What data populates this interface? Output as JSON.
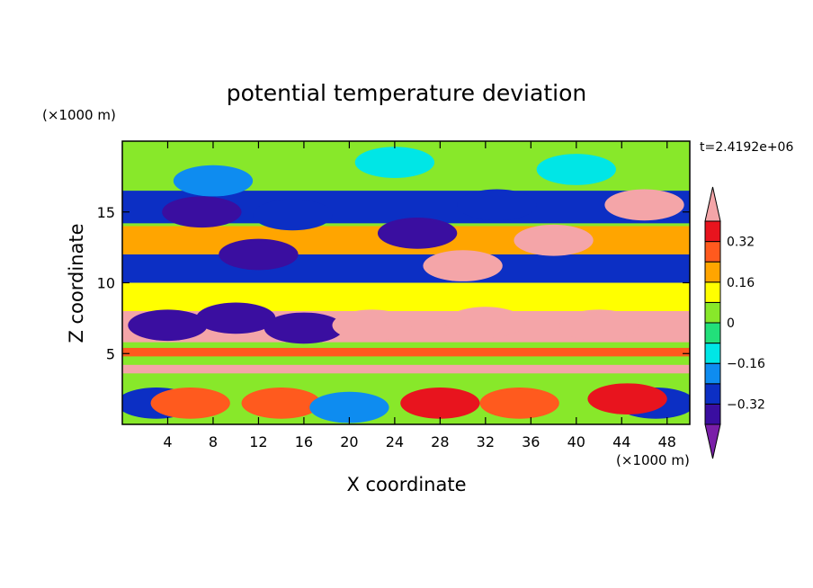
{
  "chart_data": {
    "type": "heatmap",
    "title": "potential temperature deviation",
    "xlabel": "X coordinate",
    "ylabel": "Z coordinate",
    "x_unit": "(×1000 m)",
    "y_unit": "(×1000 m)",
    "time_label": "t=2.4192e+06",
    "xlim": [
      0,
      50
    ],
    "ylim": [
      0,
      20
    ],
    "x_ticks": [
      4,
      8,
      12,
      16,
      20,
      24,
      28,
      32,
      36,
      40,
      44,
      48
    ],
    "y_ticks": [
      5,
      10,
      15
    ],
    "colorbar": {
      "levels": [
        -0.4,
        -0.32,
        -0.24,
        -0.16,
        -0.08,
        0,
        0.08,
        0.16,
        0.24,
        0.32,
        0.4
      ],
      "labels": [
        "0.32",
        "0.16",
        "0",
        "−0.16",
        "−0.32"
      ],
      "label_values": [
        0.32,
        0.16,
        0,
        -0.16,
        -0.32
      ],
      "colors": [
        "#7a1fa8",
        "#3a0ea0",
        "#0c2fc4",
        "#0e8cf0",
        "#00e6e6",
        "#22e07a",
        "#88e82a",
        "#ffff00",
        "#ffa500",
        "#ff5a1e",
        "#e8141e",
        "#f4a5a8"
      ]
    },
    "bands": [
      {
        "z": [
          18.0,
          20.0
        ],
        "value": 0.02
      },
      {
        "z": [
          14.2,
          16.5
        ],
        "value": -0.28
      },
      {
        "z": [
          12.0,
          14.0
        ],
        "value": 0.2
      },
      {
        "z": [
          10.0,
          12.0
        ],
        "value": -0.3
      },
      {
        "z": [
          8.0,
          10.0
        ],
        "value": 0.1
      },
      {
        "z": [
          5.8,
          8.0
        ],
        "value": 0.42
      },
      {
        "z": [
          4.8,
          5.4
        ],
        "value": 0.25
      },
      {
        "z": [
          3.6,
          4.2
        ],
        "value": 0.42
      },
      {
        "z": [
          0,
          3.2
        ],
        "value": 0.05
      }
    ],
    "anomalies": [
      {
        "x": 7,
        "z": 15.0,
        "value": -0.4
      },
      {
        "x": 15,
        "z": 14.8,
        "value": -0.3
      },
      {
        "x": 33,
        "z": 15.5,
        "value": -0.3
      },
      {
        "x": 46,
        "z": 15.5,
        "value": 0.44
      },
      {
        "x": 38,
        "z": 13.0,
        "value": 0.44
      },
      {
        "x": 30,
        "z": 11.2,
        "value": 0.44
      },
      {
        "x": 12,
        "z": 12.0,
        "value": -0.36
      },
      {
        "x": 26,
        "z": 13.5,
        "value": -0.38
      },
      {
        "x": 10,
        "z": 7.5,
        "value": -0.4
      },
      {
        "x": 16,
        "z": 6.8,
        "value": -0.4
      },
      {
        "x": 4,
        "z": 7.0,
        "value": -0.36
      },
      {
        "x": 32,
        "z": 7.2,
        "value": 0.44
      },
      {
        "x": 42,
        "z": 7.0,
        "value": 0.44
      },
      {
        "x": 22,
        "z": 7.0,
        "value": 0.44
      },
      {
        "x": 3,
        "z": 1.5,
        "value": -0.32
      },
      {
        "x": 47,
        "z": 1.5,
        "value": -0.3
      },
      {
        "x": 28,
        "z": 1.5,
        "value": 0.34
      },
      {
        "x": 44.5,
        "z": 1.8,
        "value": 0.34
      },
      {
        "x": 14,
        "z": 1.5,
        "value": 0.3
      },
      {
        "x": 35,
        "z": 1.5,
        "value": 0.28
      },
      {
        "x": 6,
        "z": 1.5,
        "value": 0.26
      },
      {
        "x": 20,
        "z": 1.2,
        "value": -0.2
      },
      {
        "x": 24,
        "z": 18.5,
        "value": -0.16
      },
      {
        "x": 8,
        "z": 17.2,
        "value": -0.2
      },
      {
        "x": 40,
        "z": 18.0,
        "value": -0.12
      }
    ]
  }
}
